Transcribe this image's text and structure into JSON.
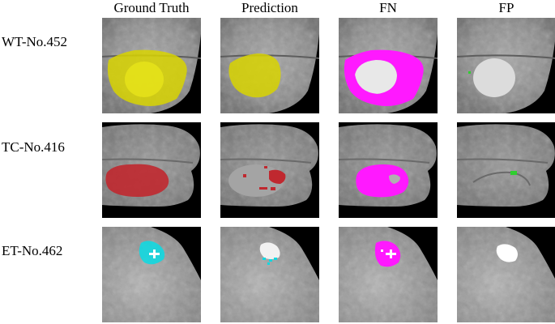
{
  "columns": [
    "Ground Truth",
    "Prediction",
    "FN",
    "FP"
  ],
  "rows": [
    {
      "label": "WT-No.452",
      "class": "WT",
      "overlay_color": "#d8d400"
    },
    {
      "label": "TC-No.416",
      "class": "TC",
      "overlay_color": "#c0282f"
    },
    {
      "label": "ET-No.462",
      "class": "ET",
      "overlay_color": "#12d8e0"
    }
  ],
  "colors": {
    "fn": "#ff19ff",
    "fp": "#2fcf2f",
    "background": "#000000",
    "tissue": "#8a8a8a"
  }
}
